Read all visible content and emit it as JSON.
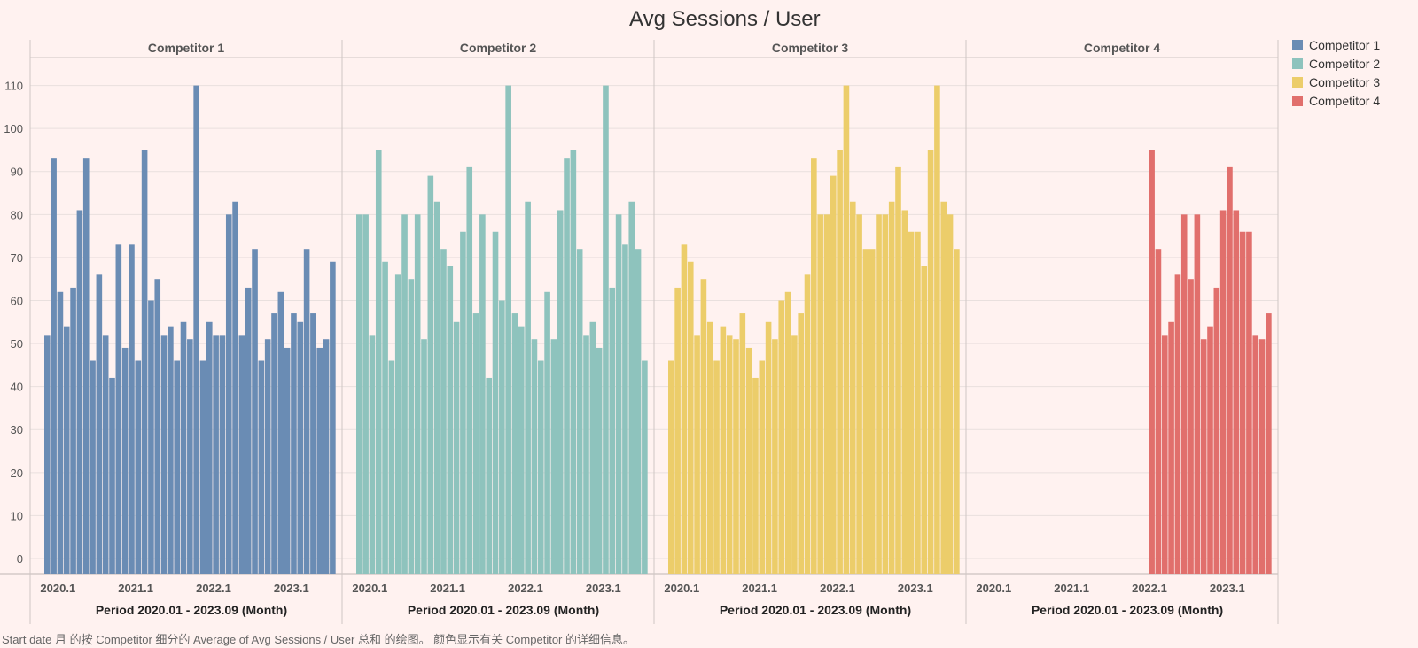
{
  "title": "Avg Sessions / User",
  "caption": "Start date 月 的按 Competitor 细分的 Average of Avg Sessions / User 总和 的绘图。 颜色显示有关 Competitor 的详细信息。",
  "colors": {
    "Competitor 1": "#6a8cb4",
    "Competitor 2": "#8ec3bd",
    "Competitor 3": "#eccd6a",
    "Competitor 4": "#e16f6c"
  },
  "chart_data": {
    "type": "bar",
    "title": "Avg Sessions / User",
    "xlabel": "Period 2020.01 - 2023.09 (Month)",
    "ylabel": "",
    "ylim": [
      0,
      115
    ],
    "yticks": [
      0,
      10,
      20,
      30,
      40,
      50,
      60,
      70,
      80,
      90,
      100,
      110
    ],
    "xticks": [
      "2020.1",
      "2021.1",
      "2022.1",
      "2023.1"
    ],
    "grid": true,
    "legend": "right",
    "categories": [
      "2020.01",
      "2020.02",
      "2020.03",
      "2020.04",
      "2020.05",
      "2020.06",
      "2020.07",
      "2020.08",
      "2020.09",
      "2020.10",
      "2020.11",
      "2020.12",
      "2021.01",
      "2021.02",
      "2021.03",
      "2021.04",
      "2021.05",
      "2021.06",
      "2021.07",
      "2021.08",
      "2021.09",
      "2021.10",
      "2021.11",
      "2021.12",
      "2022.01",
      "2022.02",
      "2022.03",
      "2022.04",
      "2022.05",
      "2022.06",
      "2022.07",
      "2022.08",
      "2022.09",
      "2022.10",
      "2022.11",
      "2022.12",
      "2023.01",
      "2023.02",
      "2023.03",
      "2023.04",
      "2023.05",
      "2023.06",
      "2023.07",
      "2023.08",
      "2023.09"
    ],
    "series": [
      {
        "name": "Competitor 1",
        "values": [
          52,
          93,
          62,
          54,
          63,
          81,
          93,
          46,
          66,
          52,
          42,
          73,
          49,
          73,
          46,
          95,
          60,
          65,
          52,
          54,
          46,
          55,
          51,
          110,
          46,
          55,
          52,
          52,
          80,
          83,
          52,
          63,
          72,
          46,
          51,
          57,
          62,
          49,
          57,
          55,
          72,
          57,
          49,
          51,
          69
        ]
      },
      {
        "name": "Competitor 2",
        "values": [
          80,
          80,
          52,
          95,
          69,
          46,
          66,
          80,
          65,
          80,
          51,
          89,
          83,
          72,
          68,
          55,
          76,
          91,
          57,
          80,
          42,
          76,
          60,
          110,
          57,
          54,
          83,
          51,
          46,
          62,
          51,
          81,
          93,
          95,
          72,
          52,
          55,
          49,
          110,
          63,
          80,
          73,
          83,
          72,
          46
        ]
      },
      {
        "name": "Competitor 3",
        "values": [
          46,
          63,
          73,
          69,
          52,
          65,
          55,
          46,
          54,
          52,
          51,
          57,
          49,
          42,
          46,
          55,
          51,
          60,
          62,
          52,
          57,
          66,
          93,
          80,
          80,
          89,
          95,
          110,
          83,
          80,
          72,
          72,
          80,
          80,
          83,
          91,
          81,
          76,
          76,
          68,
          95,
          110,
          83,
          80,
          72
        ]
      },
      {
        "name": "Competitor 4",
        "values": [
          null,
          null,
          null,
          null,
          null,
          null,
          null,
          null,
          null,
          null,
          null,
          null,
          null,
          null,
          null,
          null,
          null,
          null,
          null,
          null,
          null,
          null,
          null,
          null,
          null,
          null,
          95,
          72,
          52,
          55,
          66,
          80,
          65,
          80,
          51,
          54,
          63,
          81,
          91,
          81,
          76,
          76,
          52,
          51,
          57
        ]
      }
    ]
  }
}
